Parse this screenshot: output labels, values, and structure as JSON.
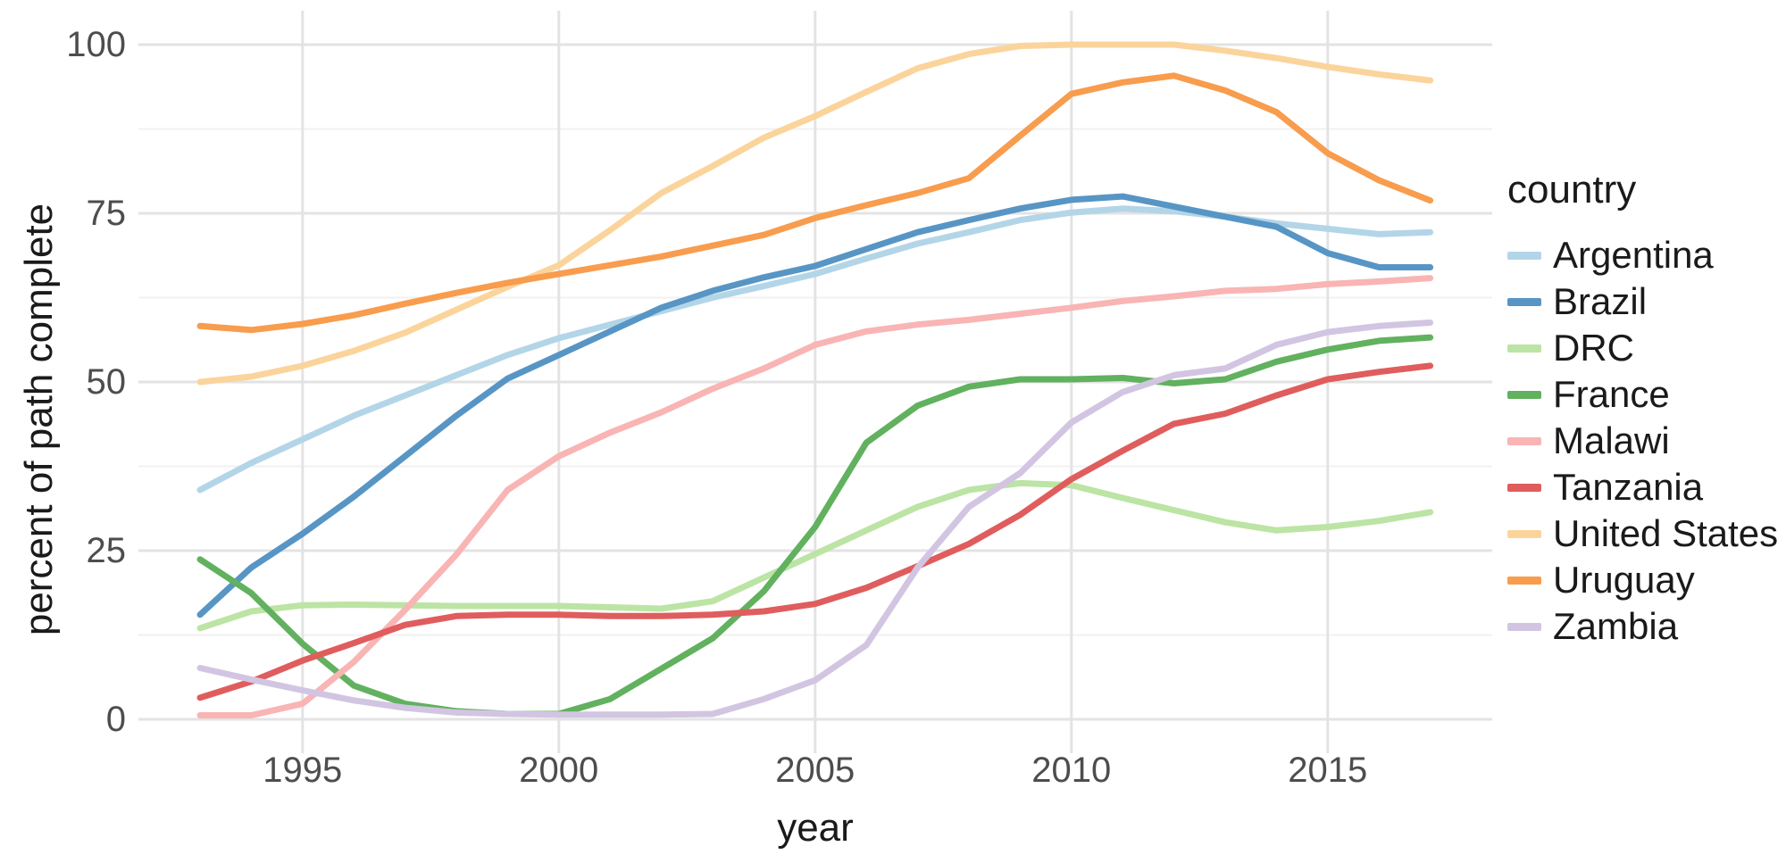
{
  "chart_data": {
    "type": "line",
    "title": "",
    "xlabel": "year",
    "ylabel": "percent of path complete",
    "legend_title": "country",
    "legend_position": "right",
    "grid": "on",
    "xlim": [
      1993,
      2017
    ],
    "ylim": [
      0,
      100
    ],
    "x_ticks": [
      1995,
      2000,
      2005,
      2010,
      2015
    ],
    "y_ticks": [
      0,
      25,
      50,
      75,
      100
    ],
    "y_minor_ticks": [
      12.5,
      37.5,
      62.5,
      87.5
    ],
    "years": [
      1993,
      1994,
      1995,
      1996,
      1997,
      1998,
      1999,
      2000,
      2001,
      2002,
      2003,
      2004,
      2005,
      2006,
      2007,
      2008,
      2009,
      2010,
      2011,
      2012,
      2013,
      2014,
      2015,
      2016,
      2017
    ],
    "series": [
      {
        "name": "Argentina",
        "color": "#b3d5e8",
        "values": [
          34,
          38,
          41.5,
          45,
          48,
          51,
          54,
          56.5,
          58.5,
          60.5,
          62.5,
          64.2,
          66,
          68.3,
          70.5,
          72.2,
          74,
          75.1,
          75.7,
          75.3,
          74.5,
          73.5,
          72.7,
          71.9,
          72.2
        ]
      },
      {
        "name": "Brazil",
        "color": "#5795c5",
        "values": [
          15.5,
          22.5,
          27.5,
          33,
          39,
          45,
          50.5,
          54,
          57.5,
          61,
          63.5,
          65.5,
          67.2,
          69.7,
          72.2,
          74,
          75.7,
          77,
          77.5,
          76,
          74.5,
          73,
          69.1,
          67,
          67
        ]
      },
      {
        "name": "DRC",
        "color": "#bce4a4",
        "values": [
          13.5,
          16,
          16.9,
          17,
          16.9,
          16.8,
          16.8,
          16.8,
          16.6,
          16.4,
          17.5,
          21,
          24.5,
          28,
          31.5,
          34,
          35,
          34.7,
          32.8,
          31,
          29.2,
          28,
          28.5,
          29.4,
          30.7
        ]
      },
      {
        "name": "France",
        "color": "#61b15f",
        "values": [
          23.7,
          18.7,
          11.2,
          5,
          2.3,
          1.2,
          0.8,
          0.8,
          3,
          7.5,
          12,
          19,
          28.5,
          41,
          46.5,
          49.3,
          50.4,
          50.4,
          50.6,
          49.8,
          50.4,
          53,
          54.8,
          56.1,
          56.6
        ]
      },
      {
        "name": "Malawi",
        "color": "#f9b4b4",
        "values": [
          0.6,
          0.6,
          2.3,
          8.5,
          16.2,
          24.4,
          34,
          39,
          42.5,
          45.5,
          49,
          52,
          55.5,
          57.5,
          58.5,
          59.2,
          60.1,
          61,
          62,
          62.7,
          63.5,
          63.8,
          64.5,
          64.9,
          65.4
        ]
      },
      {
        "name": "Tanzania",
        "color": "#e05d5d",
        "values": [
          3.2,
          5.6,
          8.7,
          11.3,
          14,
          15.3,
          15.5,
          15.5,
          15.3,
          15.3,
          15.5,
          16,
          17.1,
          19.5,
          22.7,
          26,
          30.3,
          35.6,
          39.8,
          43.8,
          45.3,
          48,
          50.4,
          51.5,
          52.4
        ]
      },
      {
        "name": "United States",
        "color": "#fbd49c",
        "values": [
          50,
          50.8,
          52.4,
          54.6,
          57.3,
          60.7,
          64.1,
          67.3,
          72.5,
          78,
          82,
          86.2,
          89.4,
          93,
          96.5,
          98.6,
          99.8,
          100,
          100,
          100,
          99.1,
          98,
          96.7,
          95.6,
          94.7
        ]
      },
      {
        "name": "Uruguay",
        "color": "#f89c4e",
        "values": [
          58.3,
          57.7,
          58.6,
          59.9,
          61.6,
          63.2,
          64.7,
          66,
          67.3,
          68.6,
          70.2,
          71.8,
          74.3,
          76.2,
          78,
          80.2,
          86.5,
          92.7,
          94.4,
          95.4,
          93.2,
          90,
          83.9,
          79.9,
          76.9
        ]
      },
      {
        "name": "Zambia",
        "color": "#d2c5e2",
        "values": [
          7.6,
          5.9,
          4.3,
          2.8,
          1.7,
          1,
          0.8,
          0.7,
          0.7,
          0.7,
          0.8,
          3,
          5.8,
          11,
          22.5,
          31.5,
          36.5,
          44,
          48.5,
          51,
          52,
          55.5,
          57.4,
          58.3,
          58.8
        ]
      }
    ],
    "style": {
      "background": "#ffffff",
      "grid_major_color": "#e3e3e3",
      "grid_minor_color": "#f1f1f1",
      "tick_label_color": "#4d4d4d",
      "line_width": 7
    }
  }
}
